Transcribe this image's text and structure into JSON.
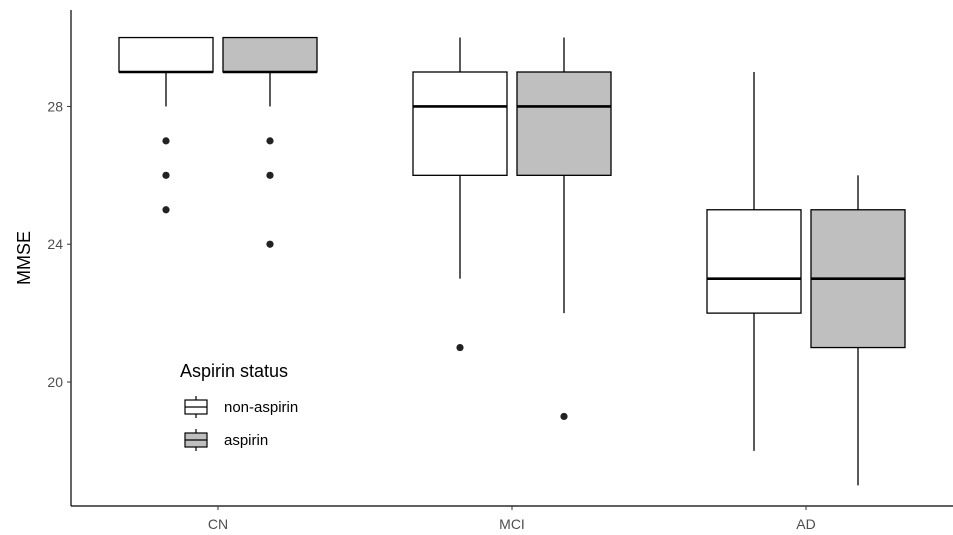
{
  "chart_data": {
    "type": "boxplot",
    "title": "",
    "xlabel": "",
    "ylabel": "MMSE",
    "ylim": [
      16.4,
      30.8
    ],
    "yticks": [
      20,
      24,
      28
    ],
    "grid": false,
    "legend_title": "Aspirin status",
    "legend_position": "bottom-left",
    "categories": [
      "CN",
      "MCI",
      "AD"
    ],
    "series": [
      {
        "name": "non-aspirin",
        "fill": "#ffffff",
        "boxes": [
          {
            "min": 28,
            "q1": 29,
            "median": 29,
            "q3": 30,
            "max": 30,
            "outliers": [
              27,
              26,
              25
            ]
          },
          {
            "min": 23,
            "q1": 26,
            "median": 28,
            "q3": 29,
            "max": 30,
            "outliers": [
              21
            ]
          },
          {
            "min": 18,
            "q1": 22,
            "median": 23,
            "q3": 25,
            "max": 29,
            "outliers": []
          }
        ]
      },
      {
        "name": "aspirin",
        "fill": "#bfbfbf",
        "boxes": [
          {
            "min": 28,
            "q1": 29,
            "median": 29,
            "q3": 30,
            "max": 30,
            "outliers": [
              27,
              26,
              24
            ]
          },
          {
            "min": 22,
            "q1": 26,
            "median": 28,
            "q3": 29,
            "max": 30,
            "outliers": [
              19
            ]
          },
          {
            "min": 17,
            "q1": 21,
            "median": 23,
            "q3": 25,
            "max": 26,
            "outliers": []
          }
        ]
      }
    ]
  }
}
